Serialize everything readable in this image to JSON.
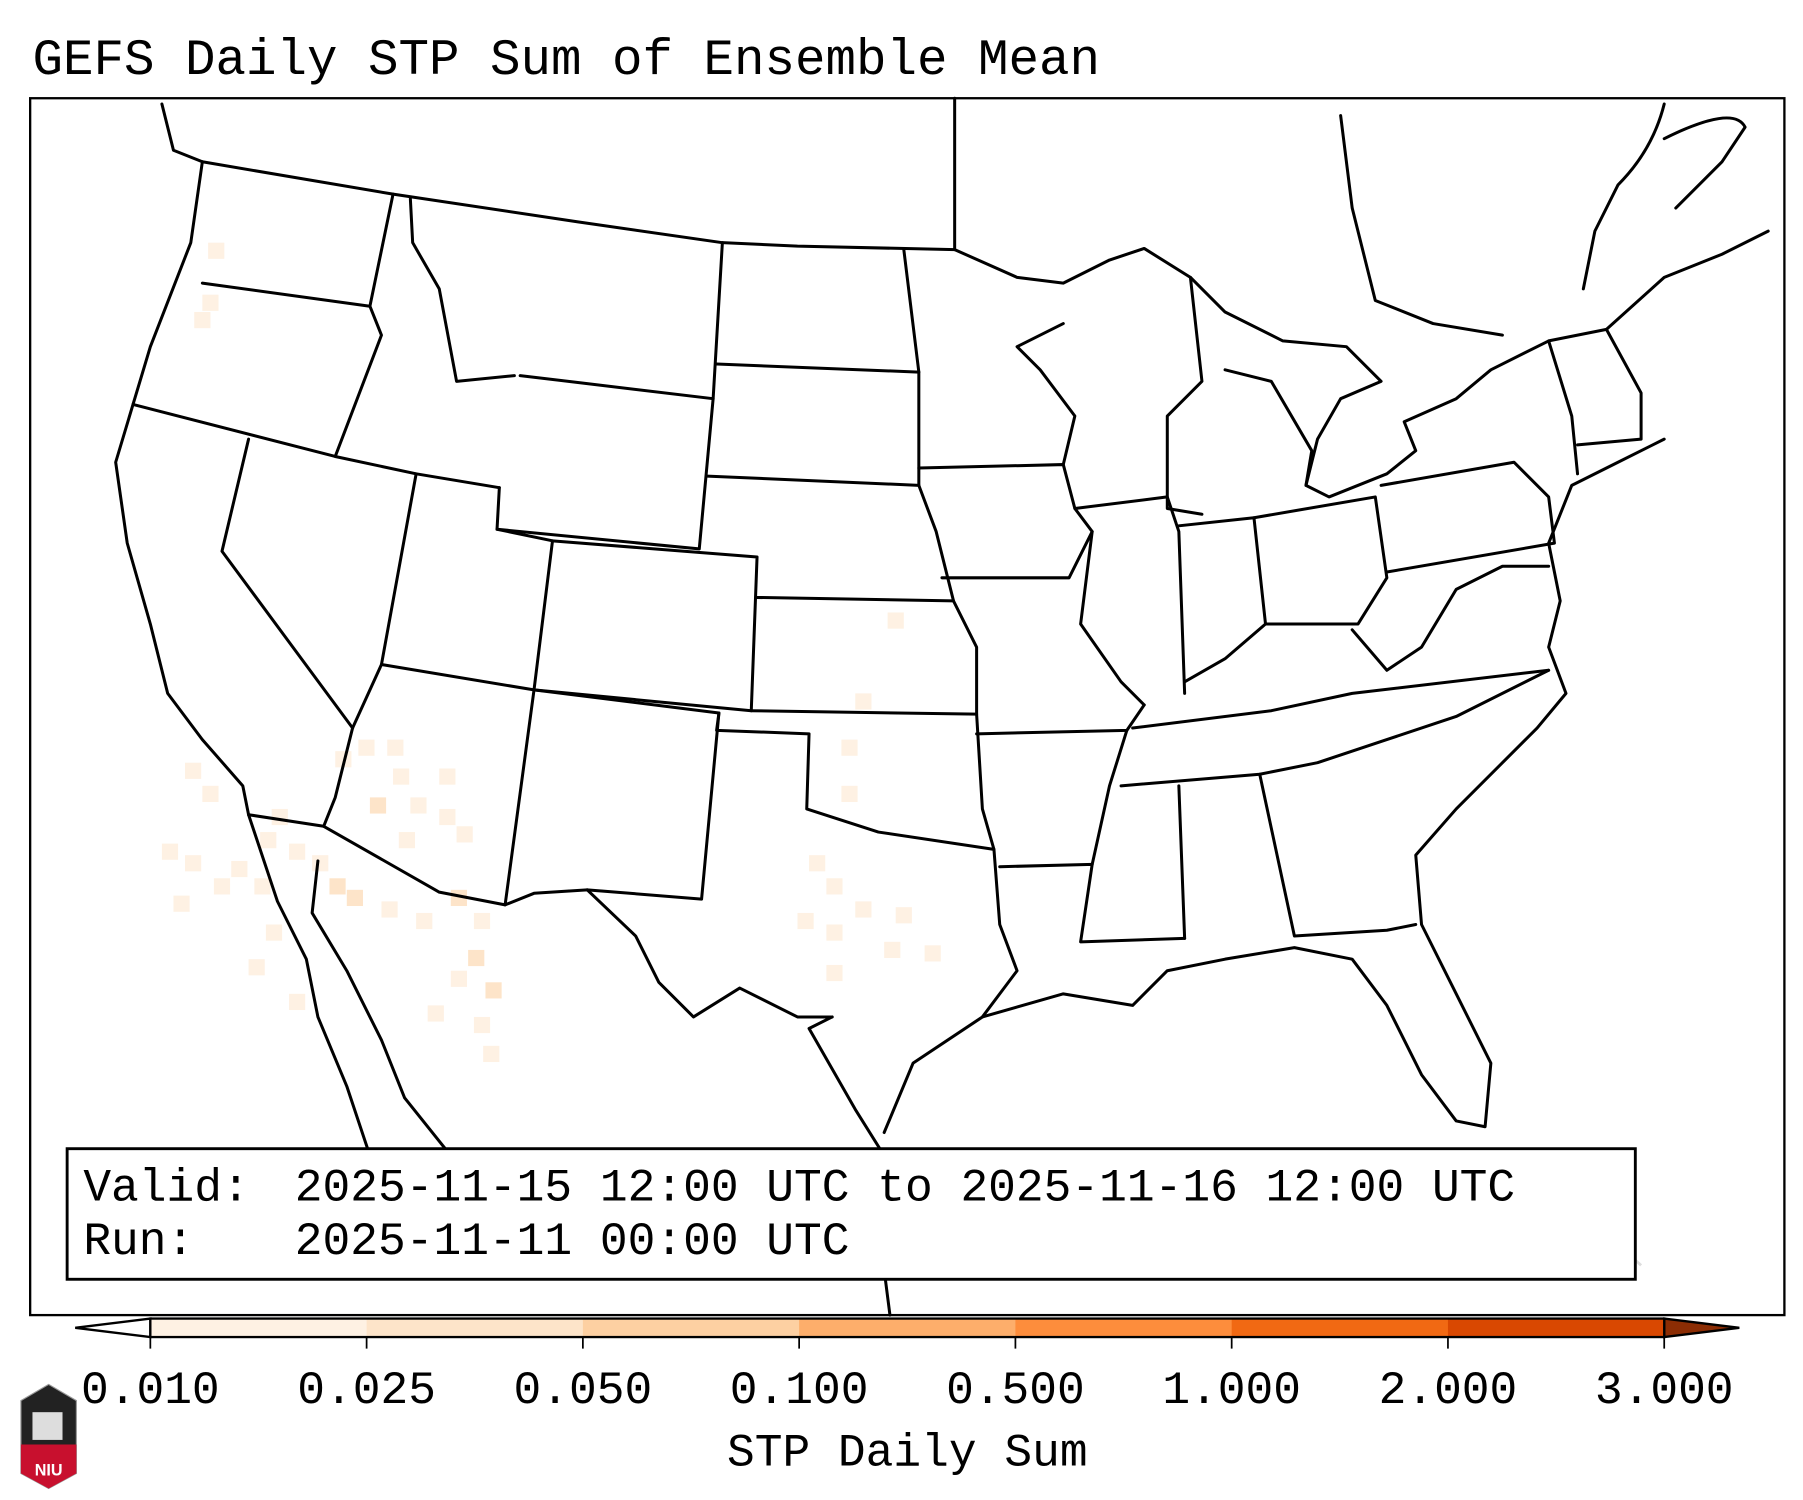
{
  "title": "GEFS Daily STP Sum of Ensemble Mean",
  "legend_box": {
    "valid_label": "Valid:",
    "valid_value": "2025-11-15 12:00 UTC to 2025-11-16 12:00 UTC",
    "run_label": "Run:",
    "run_value": "2025-11-11 00:00 UTC"
  },
  "colorbar": {
    "label": "STP Daily Sum",
    "ticks": [
      "0.010",
      "0.025",
      "0.050",
      "0.100",
      "0.500",
      "1.000",
      "2.000",
      "3.000"
    ],
    "colors": [
      "#fef1e3",
      "#fde4c9",
      "#fdd0a2",
      "#fdae6b",
      "#fd8d3c",
      "#f16913",
      "#d94801"
    ],
    "under_color": "#ffffff",
    "over_color": "#8c2d04"
  },
  "logo": {
    "text": "NIU"
  }
}
